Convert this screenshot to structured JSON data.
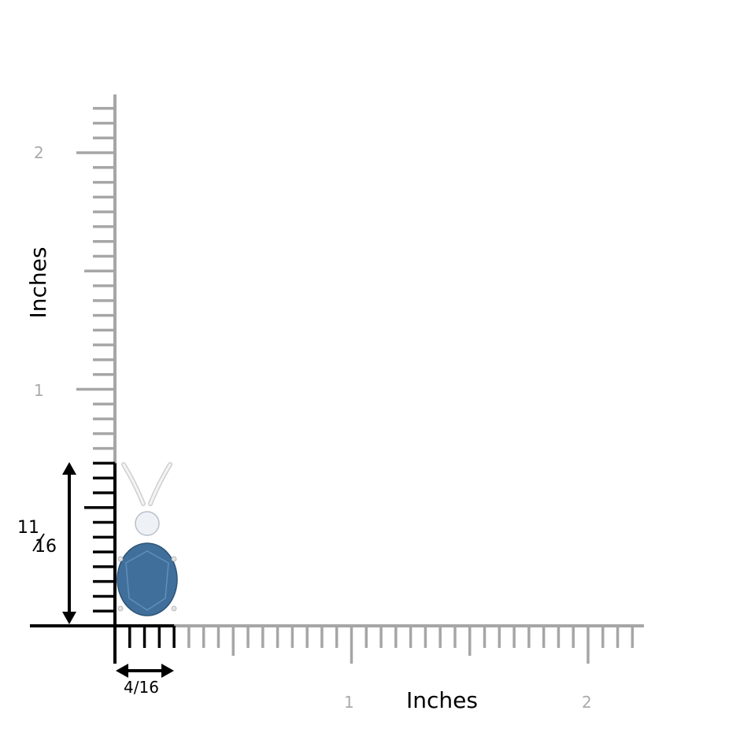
{
  "x_axis": {
    "title": "Inches",
    "tick_labels": [
      "1",
      "2"
    ]
  },
  "y_axis": {
    "title": "Inches",
    "tick_labels": [
      "1",
      "2"
    ]
  },
  "dimensions": {
    "height": {
      "numerator": "11",
      "denominator": "16",
      "value_in": 0.6875
    },
    "width": {
      "label": "4/16",
      "value_in": 0.25
    }
  },
  "colors": {
    "ruler": "#a6a6a6",
    "highlight": "#000000",
    "gem": "#3f6f9a",
    "metal": "#e8e8e8"
  },
  "product": {
    "stone": "oval blue topaz",
    "accent": "round diamond",
    "bail": "V-bail"
  }
}
